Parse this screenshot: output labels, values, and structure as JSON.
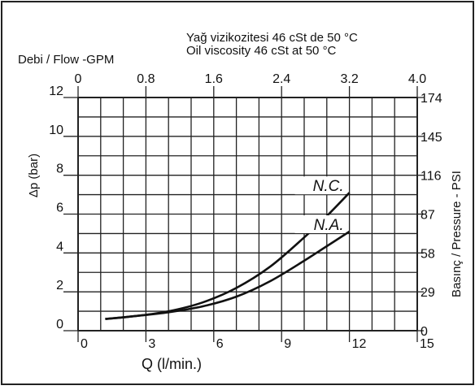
{
  "chart_data": {
    "type": "line",
    "title": "Yağ vizikozitesi 46 cSt de 50 °C",
    "subtitle": "Oil viscosity 46 cSt at 50 °C",
    "top_axis_label": "Debi / Flow -GPM",
    "top_ticks": [
      "0",
      "0.8",
      "1.6",
      "2.4",
      "3.2",
      "4.0"
    ],
    "xlabel": "Q  (l/min.)",
    "x_ticks": [
      "0",
      "3",
      "6",
      "9",
      "12",
      "15"
    ],
    "xlim": [
      0,
      15
    ],
    "ylabel": "Δp (bar)",
    "y_ticks": [
      "0",
      "2",
      "4",
      "6",
      "8",
      "10",
      "12"
    ],
    "ylim": [
      0,
      12
    ],
    "right_axis_label": "Basınç / Pressure - PSI",
    "right_ticks": [
      "0",
      "29",
      "58",
      "87",
      "116",
      "145",
      "174"
    ],
    "grid": true,
    "series": [
      {
        "name": "N.C.",
        "x": [
          1.2,
          2.5,
          4.0,
          5.5,
          7.0,
          8.5,
          10.0,
          11.0,
          12.0
        ],
        "y": [
          0.6,
          0.75,
          1.0,
          1.45,
          2.2,
          3.3,
          4.8,
          5.9,
          7.1
        ]
      },
      {
        "name": "N.A.",
        "x": [
          1.2,
          2.5,
          4.0,
          5.5,
          7.0,
          8.5,
          10.0,
          11.0,
          12.0
        ],
        "y": [
          0.6,
          0.75,
          0.95,
          1.25,
          1.75,
          2.55,
          3.6,
          4.35,
          5.1
        ]
      }
    ],
    "colors": {
      "line": "#111111",
      "grid": "#222222"
    }
  }
}
